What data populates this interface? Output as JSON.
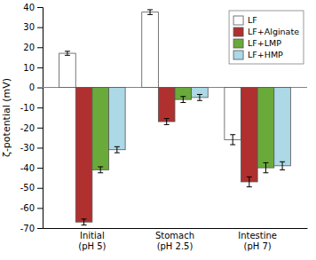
{
  "chart_data": {
    "type": "bar",
    "categories": [
      "Initial\n(pH 5)",
      "Stomach\n(pH 2.5)",
      "Intestine\n(pH 7)"
    ],
    "series": [
      {
        "name": "LF",
        "color": "#FFFFFF",
        "values": [
          17.0,
          37.5,
          -26.0
        ],
        "errors": [
          1.0,
          1.2,
          2.5
        ]
      },
      {
        "name": "LF+Alginate",
        "color": "#B03030",
        "values": [
          -67.0,
          -17.0,
          -47.0
        ],
        "errors": [
          1.5,
          1.5,
          2.5
        ]
      },
      {
        "name": "LF+LMP",
        "color": "#6AAA3A",
        "values": [
          -41.0,
          -6.0,
          -40.0
        ],
        "errors": [
          1.5,
          1.5,
          2.5
        ]
      },
      {
        "name": "LF+HMP",
        "color": "#ADD8E6",
        "values": [
          -31.0,
          -5.0,
          -39.0
        ],
        "errors": [
          1.5,
          1.5,
          2.0
        ]
      }
    ],
    "y_label": "ζ-potential (mV)",
    "ylim": [
      -70,
      40
    ],
    "yticks": [
      -70,
      -60,
      -50,
      -40,
      -30,
      -20,
      -10,
      0,
      10,
      20,
      30,
      40
    ],
    "grid": false,
    "legend": "upper right"
  }
}
